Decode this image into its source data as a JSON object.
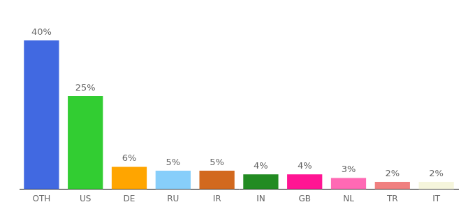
{
  "chart_data": {
    "type": "bar",
    "categories": [
      "OTH",
      "US",
      "DE",
      "RU",
      "IR",
      "IN",
      "GB",
      "NL",
      "TR",
      "IT"
    ],
    "values": [
      40,
      25,
      6,
      5,
      5,
      4,
      4,
      3,
      2,
      2
    ],
    "value_labels": [
      "40%",
      "25%",
      "6%",
      "5%",
      "5%",
      "4%",
      "4%",
      "3%",
      "2%",
      "2%"
    ],
    "colors": [
      "#4169e1",
      "#32cd32",
      "#ffa500",
      "#87cefa",
      "#d2691e",
      "#228b22",
      "#ff1493",
      "#ff69b4",
      "#f08080",
      "#f5f5dc"
    ],
    "ylim": [
      0,
      40
    ],
    "grid": false,
    "data_labels": true,
    "tick_labels": "x"
  }
}
